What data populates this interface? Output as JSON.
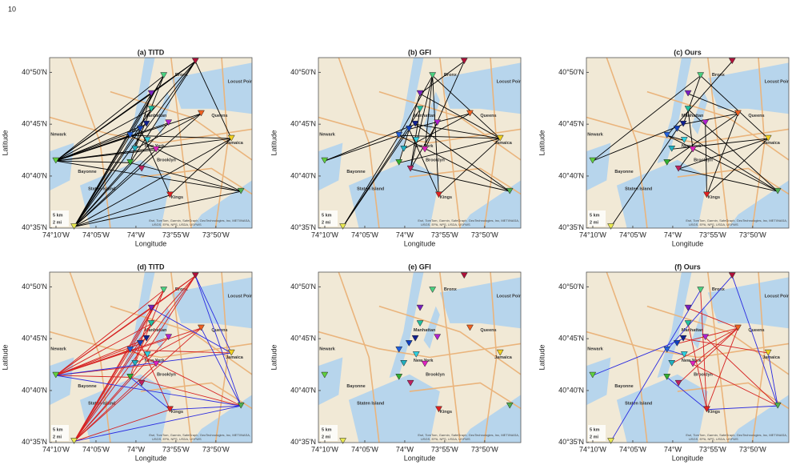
{
  "page_number": "10",
  "axes": {
    "xlabel": "Longitude",
    "ylabel": "Latitude",
    "xlim": [
      -74.18,
      -73.758
    ],
    "ylim": [
      40.583,
      40.857
    ],
    "xticks": [
      {
        "value": -74.1667,
        "label": "74°10'W"
      },
      {
        "value": -74.0833,
        "label": "74°05'W"
      },
      {
        "value": -74.0,
        "label": "74°W"
      },
      {
        "value": -73.9167,
        "label": "73°55'W"
      },
      {
        "value": -73.8333,
        "label": "73°50'W"
      }
    ],
    "yticks": [
      {
        "value": 40.5833,
        "label": "40°35'N"
      },
      {
        "value": 40.6667,
        "label": "40°40'N"
      },
      {
        "value": 40.75,
        "label": "40°45'N"
      },
      {
        "value": 40.8333,
        "label": "40°50'N"
      }
    ]
  },
  "map_labels": [
    "Bronx",
    "Manhattan",
    "Queens",
    "Newark",
    "Jamaica",
    "Brooklyn",
    "New York",
    "Bayonne",
    "Staten Island",
    "Kings",
    "Locust Point",
    "5 km",
    "2 mi",
    "Esri, TomTom, Garmin, SafeGraph, GeoTechnologies, Inc, METI/NASA,",
    "USGS, EPA, NPS, USDA, USFWS"
  ],
  "stations": [
    {
      "lon": -73.876,
      "lat": 40.851,
      "color": "#b0103a"
    },
    {
      "lon": -73.942,
      "lat": 40.828,
      "color": "#4ad080"
    },
    {
      "lon": -73.968,
      "lat": 40.799,
      "color": "#7a1fc0"
    },
    {
      "lon": -73.968,
      "lat": 40.774,
      "color": "#20c0a0"
    },
    {
      "lon": -74.167,
      "lat": 40.691,
      "color": "#60d040"
    },
    {
      "lon": -74.129,
      "lat": 40.585,
      "color": "#e8e850"
    },
    {
      "lon": -73.929,
      "lat": 40.636,
      "color": "#e02020"
    },
    {
      "lon": -73.781,
      "lat": 40.642,
      "color": "#50b050"
    },
    {
      "lon": -73.801,
      "lat": 40.727,
      "color": "#f0d020"
    },
    {
      "lon": -73.864,
      "lat": 40.767,
      "color": "#f06020"
    },
    {
      "lon": -73.932,
      "lat": 40.752,
      "color": "#b020d0"
    },
    {
      "lon": -74.012,
      "lat": 40.732,
      "color": "#2060e0"
    },
    {
      "lon": -73.991,
      "lat": 40.742,
      "color": "#1040c0"
    },
    {
      "lon": -73.978,
      "lat": 40.75,
      "color": "#102090"
    },
    {
      "lon": -74.002,
      "lat": 40.71,
      "color": "#20b0c0"
    },
    {
      "lon": -73.958,
      "lat": 40.709,
      "color": "#e020c0"
    },
    {
      "lon": -74.012,
      "lat": 40.688,
      "color": "#30b030"
    },
    {
      "lon": -73.988,
      "lat": 40.678,
      "color": "#c02060"
    },
    {
      "lon": -73.976,
      "lat": 40.724,
      "color": "#30d0e0"
    }
  ],
  "panels": [
    {
      "title": "(a) TITD",
      "edge_groups": [
        {
          "color": "#000000",
          "edges": [
            [
              4,
              0
            ],
            [
              4,
              1
            ],
            [
              4,
              2
            ],
            [
              4,
              3
            ],
            [
              4,
              8
            ],
            [
              4,
              9
            ],
            [
              4,
              10
            ],
            [
              4,
              11
            ],
            [
              4,
              12
            ],
            [
              4,
              13
            ],
            [
              4,
              15
            ],
            [
              4,
              16
            ],
            [
              4,
              7
            ],
            [
              5,
              0
            ],
            [
              5,
              1
            ],
            [
              5,
              2
            ],
            [
              5,
              3
            ],
            [
              5,
              9
            ],
            [
              5,
              10
            ],
            [
              5,
              11
            ],
            [
              5,
              12
            ],
            [
              5,
              15
            ],
            [
              5,
              16
            ],
            [
              5,
              8
            ],
            [
              5,
              6
            ],
            [
              0,
              2
            ],
            [
              0,
              11
            ],
            [
              0,
              16
            ],
            [
              0,
              8
            ],
            [
              1,
              11
            ],
            [
              1,
              14
            ],
            [
              7,
              16
            ],
            [
              7,
              11
            ],
            [
              7,
              5
            ],
            [
              6,
              8
            ],
            [
              6,
              12
            ],
            [
              8,
              11
            ],
            [
              9,
              14
            ],
            [
              2,
              16
            ],
            [
              0,
              4
            ]
          ]
        }
      ]
    },
    {
      "title": "(b) GFI",
      "edge_groups": [
        {
          "color": "#000000",
          "edges": [
            [
              5,
              11
            ],
            [
              5,
              12
            ],
            [
              5,
              3
            ],
            [
              4,
              11
            ],
            [
              4,
              13
            ],
            [
              8,
              11
            ],
            [
              8,
              13
            ],
            [
              8,
              2
            ],
            [
              8,
              1
            ],
            [
              8,
              16
            ],
            [
              8,
              6
            ],
            [
              7,
              13
            ],
            [
              7,
              11
            ],
            [
              7,
              17
            ],
            [
              1,
              11
            ],
            [
              1,
              15
            ],
            [
              1,
              6
            ],
            [
              0,
              2
            ],
            [
              2,
              16
            ],
            [
              3,
              17
            ],
            [
              6,
              12
            ],
            [
              9,
              12
            ],
            [
              10,
              17
            ],
            [
              14,
              9
            ],
            [
              0,
              15
            ],
            [
              1,
              17
            ]
          ]
        }
      ]
    },
    {
      "title": "(c) Ours",
      "edge_groups": [
        {
          "color": "#000000",
          "edges": [
            [
              4,
              1
            ],
            [
              4,
              13
            ],
            [
              5,
              12
            ],
            [
              0,
              11
            ],
            [
              1,
              13
            ],
            [
              1,
              8
            ],
            [
              2,
              9
            ],
            [
              3,
              7
            ],
            [
              3,
              15
            ],
            [
              6,
              8
            ],
            [
              6,
              9
            ],
            [
              7,
              17
            ],
            [
              7,
              11
            ],
            [
              8,
              17
            ],
            [
              9,
              16
            ],
            [
              10,
              6
            ],
            [
              12,
              7
            ],
            [
              13,
              9
            ],
            [
              14,
              8
            ],
            [
              15,
              17
            ],
            [
              11,
              18
            ]
          ]
        }
      ]
    },
    {
      "title": "(d) TITD",
      "edge_groups": [
        {
          "color": "#d62020",
          "edges": [
            [
              4,
              0
            ],
            [
              4,
              1
            ],
            [
              4,
              2
            ],
            [
              4,
              3
            ],
            [
              4,
              9
            ],
            [
              4,
              10
            ],
            [
              4,
              11
            ],
            [
              4,
              12
            ],
            [
              4,
              13
            ],
            [
              4,
              15
            ],
            [
              4,
              16
            ],
            [
              5,
              0
            ],
            [
              5,
              1
            ],
            [
              5,
              2
            ],
            [
              5,
              3
            ],
            [
              5,
              9
            ],
            [
              5,
              10
            ],
            [
              5,
              11
            ],
            [
              5,
              12
            ],
            [
              5,
              15
            ],
            [
              5,
              16
            ],
            [
              5,
              6
            ],
            [
              0,
              2
            ],
            [
              0,
              11
            ],
            [
              0,
              16
            ],
            [
              1,
              11
            ],
            [
              1,
              14
            ],
            [
              7,
              16
            ],
            [
              7,
              11
            ],
            [
              6,
              12
            ],
            [
              8,
              11
            ],
            [
              9,
              14
            ],
            [
              2,
              16
            ]
          ]
        },
        {
          "color": "#2a2ae0",
          "edges": [
            [
              0,
              7
            ],
            [
              0,
              8
            ],
            [
              9,
              7
            ],
            [
              6,
              7
            ],
            [
              5,
              7
            ],
            [
              4,
              7
            ],
            [
              4,
              8
            ],
            [
              8,
              2
            ],
            [
              6,
              16
            ]
          ]
        }
      ]
    },
    {
      "title": "(e) GFI",
      "edge_groups": []
    },
    {
      "title": "(f) Ours",
      "edge_groups": [
        {
          "color": "#d62020",
          "edges": [
            [
              1,
              6
            ],
            [
              2,
              9
            ],
            [
              3,
              6
            ],
            [
              9,
              15
            ],
            [
              10,
              7
            ],
            [
              13,
              8
            ],
            [
              14,
              9
            ],
            [
              6,
              9
            ],
            [
              17,
              9
            ],
            [
              15,
              7
            ],
            [
              12,
              9
            ]
          ]
        },
        {
          "color": "#2a2ae0",
          "edges": [
            [
              4,
              13
            ],
            [
              5,
              1
            ],
            [
              0,
              11
            ],
            [
              0,
              7
            ],
            [
              8,
              7
            ],
            [
              7,
              6
            ],
            [
              6,
              16
            ],
            [
              11,
              18
            ]
          ]
        }
      ]
    }
  ]
}
